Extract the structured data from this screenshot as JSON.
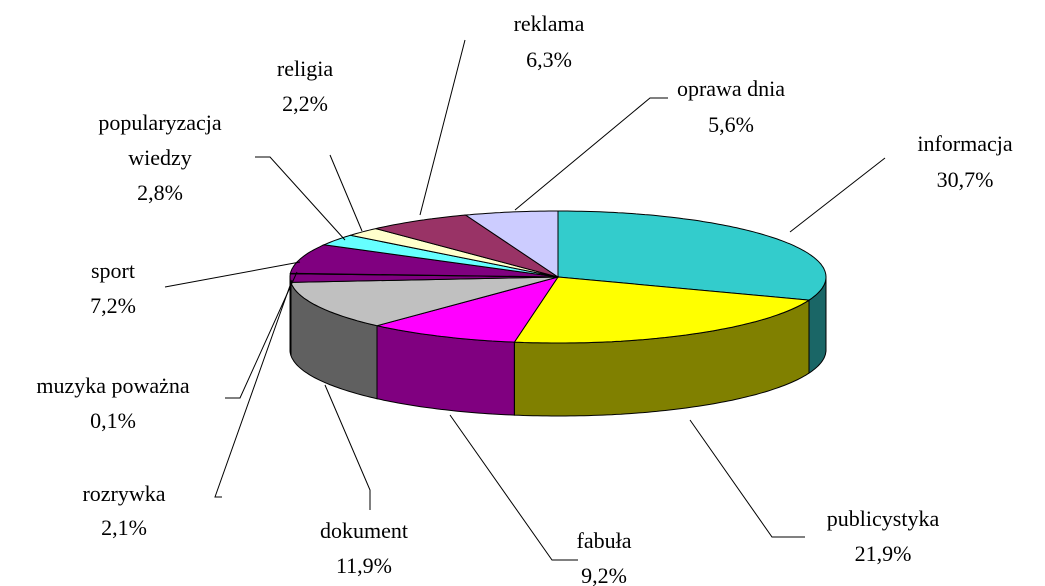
{
  "chart_data": {
    "type": "pie3d",
    "categories": [
      "informacja",
      "publicystyka",
      "fabuła",
      "dokument",
      "rozrywka",
      "muzyka poważna",
      "sport",
      "popularyzacja wiedzy",
      "religia",
      "reklama",
      "oprawa dnia"
    ],
    "values": [
      30.7,
      21.9,
      9.2,
      11.9,
      2.1,
      0.1,
      7.2,
      2.8,
      2.2,
      6.3,
      5.6
    ],
    "value_labels": [
      "30,7%",
      "21,9%",
      "9,2%",
      "11,9%",
      "2,1%",
      "0,1%",
      "7,2%",
      "2,8%",
      "2,2%",
      "6,3%",
      "5,6%"
    ],
    "colors": [
      "#33CCCC",
      "#FFFF00",
      "#FF00FF",
      "#C0C0C0",
      "#800080",
      "#660066",
      "#800080",
      "#66FFFF",
      "#FFFFCC",
      "#993366",
      "#CCCCFF"
    ]
  }
}
